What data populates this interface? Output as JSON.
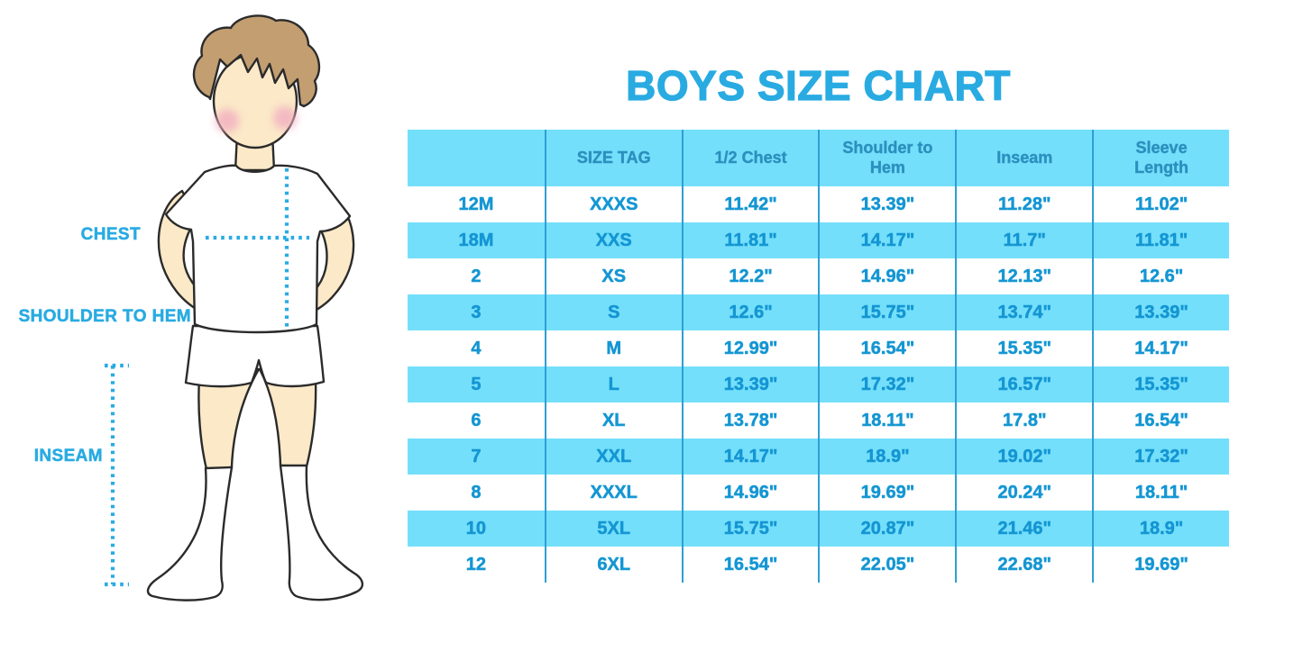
{
  "theme": {
    "accent": "#29ABE2",
    "stripe": "#74DFFB",
    "divider": "#2E9FD4",
    "cell_text": "#1496D3",
    "header_text": "#2B90BE",
    "skin": "#FBE9C8",
    "hair": "#C29E71",
    "cheek": "#F2AEC0",
    "outline": "#2B2B2B",
    "garment": "#FFFFFF"
  },
  "title": "BOYS SIZE CHART",
  "figure": {
    "labels": {
      "chest": "CHEST",
      "shoulder_to_hem": "SHOULDER TO HEM",
      "inseam": "INSEAM"
    }
  },
  "chart_data": {
    "type": "table",
    "title": "BOYS SIZE CHART",
    "columns": [
      "",
      "SIZE TAG",
      "1/2 Chest",
      "Shoulder to Hem",
      "Inseam",
      "Sleeve Length"
    ],
    "rows": [
      [
        "12M",
        "XXXS",
        "11.42\"",
        "13.39\"",
        "11.28\"",
        "11.02\""
      ],
      [
        "18M",
        "XXS",
        "11.81\"",
        "14.17\"",
        "11.7\"",
        "11.81\""
      ],
      [
        "2",
        "XS",
        "12.2\"",
        "14.96\"",
        "12.13\"",
        "12.6\""
      ],
      [
        "3",
        "S",
        "12.6\"",
        "15.75\"",
        "13.74\"",
        "13.39\""
      ],
      [
        "4",
        "M",
        "12.99\"",
        "16.54\"",
        "15.35\"",
        "14.17\""
      ],
      [
        "5",
        "L",
        "13.39\"",
        "17.32\"",
        "16.57\"",
        "15.35\""
      ],
      [
        "6",
        "XL",
        "13.78\"",
        "18.11\"",
        "17.8\"",
        "16.54\""
      ],
      [
        "7",
        "XXL",
        "14.17\"",
        "18.9\"",
        "19.02\"",
        "17.32\""
      ],
      [
        "8",
        "XXXL",
        "14.96\"",
        "19.69\"",
        "20.24\"",
        "18.11\""
      ],
      [
        "10",
        "5XL",
        "15.75\"",
        "20.87\"",
        "21.46\"",
        "18.9\""
      ],
      [
        "12",
        "6XL",
        "16.54\"",
        "22.05\"",
        "22.68\"",
        "19.69\""
      ]
    ],
    "row_striping": "alternating white / light blue starting white",
    "grid": "vertical column dividers only, no outer border"
  }
}
